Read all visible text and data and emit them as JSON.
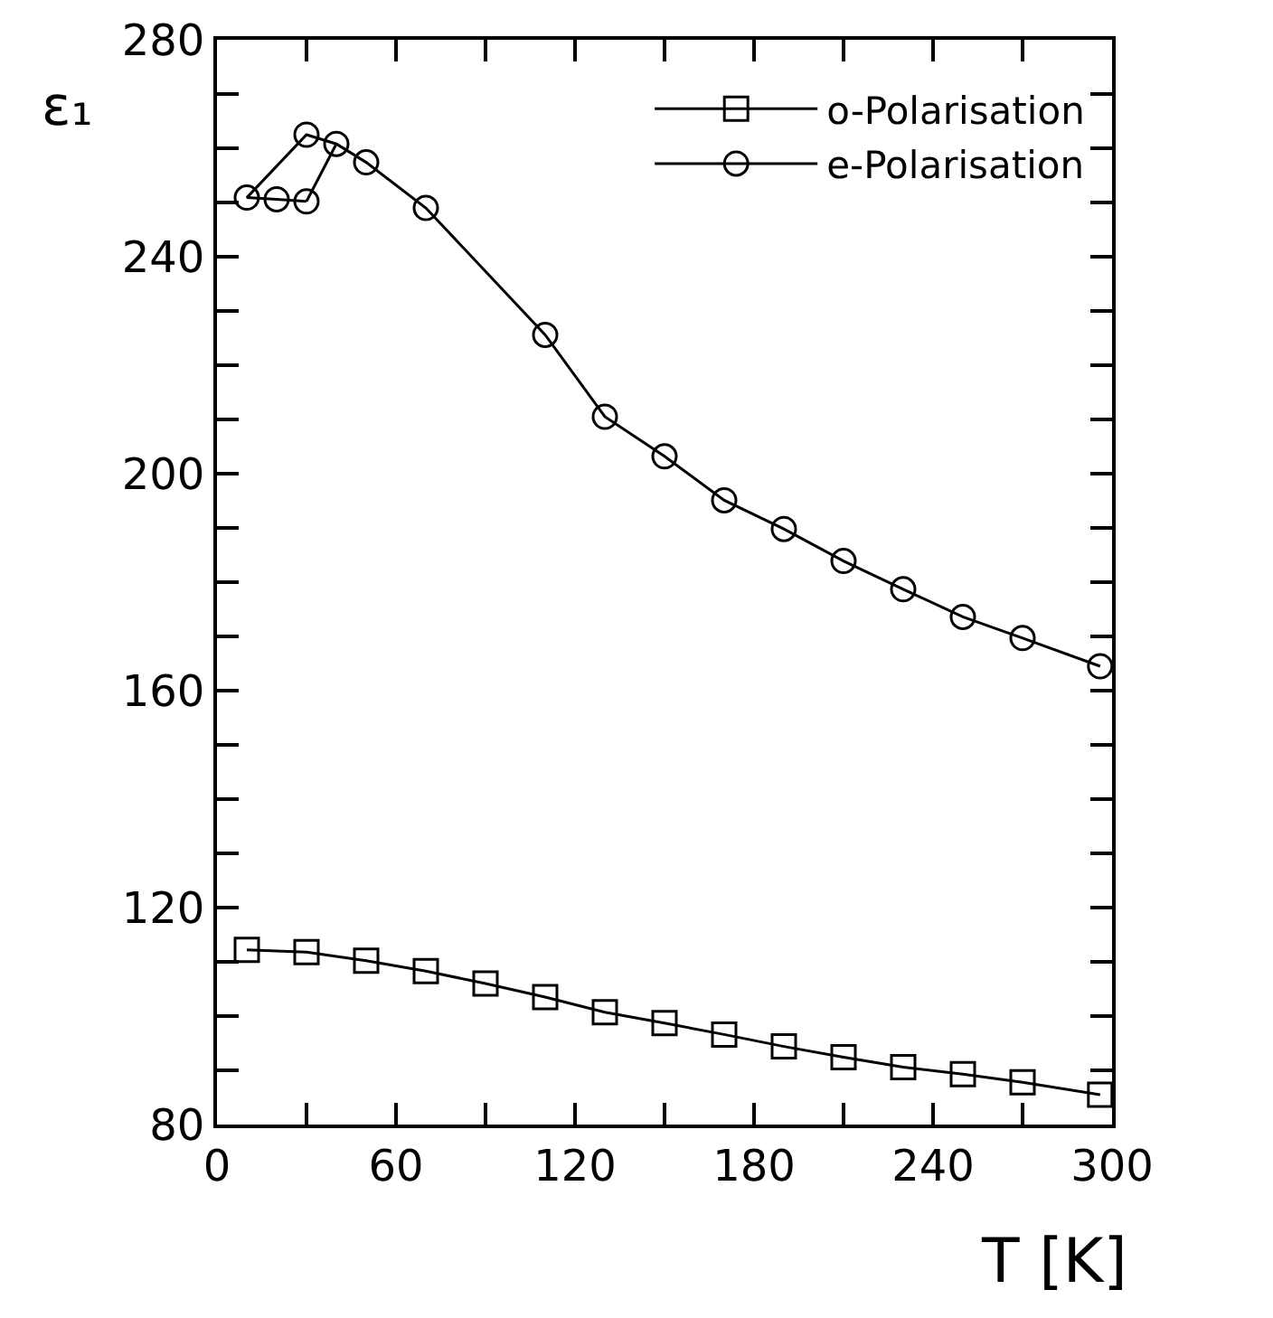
{
  "chart_data": {
    "type": "line",
    "xlabel": "T [K]",
    "ylabel": "ε₁",
    "series": [
      {
        "name": "o-Polarisation",
        "color": "#000000",
        "marker": "square",
        "x": [
          10,
          30,
          50,
          70,
          90,
          110,
          130,
          150,
          170,
          190,
          210,
          230,
          250,
          270,
          296
        ],
        "values": [
          112.2,
          111.8,
          110.2,
          108.3,
          106,
          103.5,
          100.7,
          98.7,
          96.6,
          94.4,
          92.4,
          90.6,
          89.3,
          87.8,
          85.5
        ]
      },
      {
        "name": "e-Polarisation",
        "color": "#000000",
        "marker": "circle",
        "x": [
          30,
          20,
          10,
          30,
          40,
          50,
          70,
          110,
          130,
          150,
          170,
          190,
          210,
          230,
          250,
          270,
          296
        ],
        "values": [
          250.2,
          250.6,
          250.9,
          262.5,
          260.8,
          257.4,
          249,
          225.6,
          210.5,
          203.2,
          195.1,
          189.8,
          183.9,
          178.7,
          173.6,
          169.7,
          164.5
        ]
      },
      {
        "color": "#000000",
        "marker": "none",
        "x": [
          30,
          40
        ],
        "values": [
          250.2,
          260.8
        ]
      }
    ],
    "xlim": [
      0,
      300
    ],
    "xticks": [
      0,
      {
        "value": 30,
        "label": null
      },
      60,
      {
        "value": 90,
        "label": null
      },
      120,
      {
        "value": 150,
        "label": null
      },
      180,
      {
        "value": 210,
        "label": null
      },
      240,
      {
        "value": 270,
        "label": null
      },
      300
    ],
    "ylim": [
      80,
      280
    ],
    "yticks": [
      80,
      {
        "value": 90,
        "label": null
      },
      {
        "value": 100,
        "label": null
      },
      {
        "value": 110,
        "label": null
      },
      120,
      {
        "value": 130,
        "label": null
      },
      {
        "value": 140,
        "label": null
      },
      {
        "value": 150,
        "label": null
      },
      160,
      {
        "value": 170,
        "label": null
      },
      {
        "value": 180,
        "label": null
      },
      {
        "value": 190,
        "label": null
      },
      200,
      {
        "value": 210,
        "label": null
      },
      {
        "value": 220,
        "label": null
      },
      {
        "value": 230,
        "label": null
      },
      240,
      {
        "value": 250,
        "label": null
      },
      {
        "value": 260,
        "label": null
      },
      {
        "value": 270,
        "label": null
      },
      280
    ],
    "grid": false,
    "legend": "top right",
    "line_style": "solid"
  }
}
